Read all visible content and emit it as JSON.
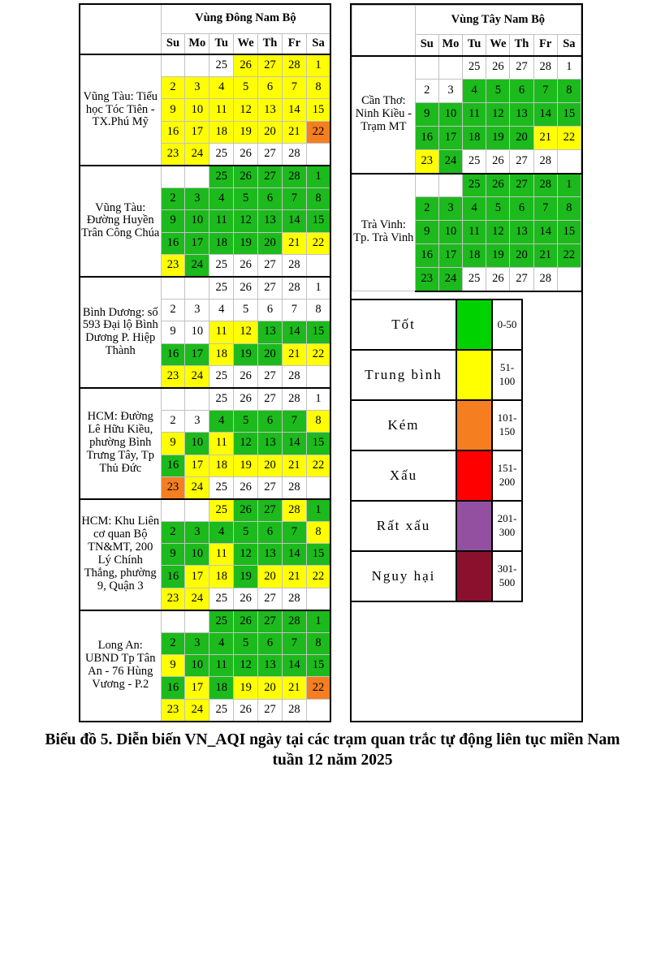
{
  "caption": {
    "line1": "Biểu đồ 5. Diễn biến VN_AQI ngày tại các trạm quan trắc tự động liên tục miền Nam",
    "line2": "tuần 12 năm 2025"
  },
  "day_headers": [
    "Su",
    "Mo",
    "Tu",
    "We",
    "Th",
    "Fr",
    "Sa"
  ],
  "palette": {
    "g": "#1cba1c",
    "y": "#ffff00",
    "o": "#f57e20",
    "w": "#ffffff",
    "n": "#ffffff"
  },
  "chart_data": {
    "type": "heatmap",
    "title": "Biểu đồ 5. Diễn biến VN_AQI ngày tại các trạm quan trắc tự động liên tục miền Nam tuần 12 năm 2025",
    "cell_code_meaning": {
      "g": "Tốt (0-50)",
      "y": "Trung bình (51-100)",
      "o": "Kém (101-150)",
      "w": "no color (no data)",
      "n": "blank cell"
    },
    "week_values": [
      [
        "",
        "",
        "25",
        "26",
        "27",
        "28",
        "1"
      ],
      [
        "2",
        "3",
        "4",
        "5",
        "6",
        "7",
        "8"
      ],
      [
        "9",
        "10",
        "11",
        "12",
        "13",
        "14",
        "15"
      ],
      [
        "16",
        "17",
        "18",
        "19",
        "20",
        "21",
        "22"
      ],
      [
        "23",
        "24",
        "25",
        "26",
        "27",
        "28",
        ""
      ]
    ],
    "groups": [
      {
        "title": "Vùng Đông Nam Bộ",
        "stations": [
          {
            "name": "Vũng Tàu: Tiểu học Tóc Tiên - TX.Phú Mỹ",
            "colors": [
              [
                "n",
                "n",
                "w",
                "y",
                "y",
                "y",
                "y"
              ],
              [
                "y",
                "y",
                "y",
                "y",
                "y",
                "y",
                "y"
              ],
              [
                "y",
                "y",
                "y",
                "y",
                "y",
                "y",
                "y"
              ],
              [
                "y",
                "y",
                "y",
                "y",
                "y",
                "y",
                "o"
              ],
              [
                "y",
                "y",
                "w",
                "w",
                "w",
                "w",
                "n"
              ]
            ]
          },
          {
            "name": "Vũng Tàu: Đường Huyền Trân Công Chúa",
            "colors": [
              [
                "n",
                "n",
                "g",
                "g",
                "g",
                "g",
                "g"
              ],
              [
                "g",
                "g",
                "g",
                "g",
                "g",
                "g",
                "g"
              ],
              [
                "g",
                "g",
                "g",
                "g",
                "g",
                "g",
                "g"
              ],
              [
                "g",
                "g",
                "g",
                "g",
                "g",
                "y",
                "y"
              ],
              [
                "y",
                "g",
                "w",
                "w",
                "w",
                "w",
                "n"
              ]
            ]
          },
          {
            "name": "Bình Dương: số 593 Đại lộ Bình Dương  P. Hiệp Thành",
            "colors": [
              [
                "n",
                "n",
                "w",
                "w",
                "w",
                "w",
                "w"
              ],
              [
                "w",
                "w",
                "w",
                "w",
                "w",
                "w",
                "w"
              ],
              [
                "w",
                "w",
                "y",
                "y",
                "g",
                "g",
                "g"
              ],
              [
                "g",
                "g",
                "y",
                "g",
                "g",
                "y",
                "y"
              ],
              [
                "y",
                "y",
                "w",
                "w",
                "w",
                "w",
                "n"
              ]
            ]
          },
          {
            "name": "HCM: Đường Lê Hữu Kiều, phường Bình Trưng Tây, Tp Thủ Đức",
            "colors": [
              [
                "n",
                "n",
                "w",
                "w",
                "w",
                "w",
                "w"
              ],
              [
                "w",
                "w",
                "g",
                "g",
                "g",
                "g",
                "y"
              ],
              [
                "y",
                "g",
                "y",
                "g",
                "g",
                "g",
                "g"
              ],
              [
                "g",
                "y",
                "y",
                "y",
                "y",
                "y",
                "y"
              ],
              [
                "o",
                "y",
                "w",
                "w",
                "w",
                "w",
                "n"
              ]
            ]
          },
          {
            "name": "HCM: Khu Liên cơ quan Bộ TN&MT, 200 Lý Chính Thắng, phường 9, Quận 3",
            "colors": [
              [
                "n",
                "n",
                "y",
                "g",
                "g",
                "y",
                "g"
              ],
              [
                "g",
                "g",
                "g",
                "g",
                "g",
                "g",
                "y"
              ],
              [
                "g",
                "g",
                "y",
                "g",
                "g",
                "g",
                "g"
              ],
              [
                "g",
                "y",
                "y",
                "g",
                "y",
                "y",
                "y"
              ],
              [
                "y",
                "y",
                "w",
                "w",
                "w",
                "w",
                "n"
              ]
            ]
          },
          {
            "name": "Long An: UBND Tp Tân An - 76 Hùng Vương - P.2",
            "colors": [
              [
                "n",
                "n",
                "g",
                "g",
                "g",
                "g",
                "g"
              ],
              [
                "g",
                "g",
                "g",
                "g",
                "g",
                "g",
                "g"
              ],
              [
                "y",
                "g",
                "g",
                "g",
                "g",
                "g",
                "g"
              ],
              [
                "g",
                "y",
                "g",
                "y",
                "y",
                "y",
                "o"
              ],
              [
                "y",
                "y",
                "w",
                "w",
                "w",
                "w",
                "n"
              ]
            ]
          }
        ]
      },
      {
        "title": "Vùng Tây Nam Bộ",
        "stations": [
          {
            "name": "Cần Thơ: Ninh Kiều - Trạm MT",
            "colors": [
              [
                "n",
                "n",
                "w",
                "w",
                "w",
                "w",
                "w"
              ],
              [
                "w",
                "w",
                "g",
                "g",
                "g",
                "g",
                "g"
              ],
              [
                "g",
                "g",
                "g",
                "g",
                "g",
                "g",
                "g"
              ],
              [
                "g",
                "g",
                "g",
                "g",
                "g",
                "y",
                "y"
              ],
              [
                "y",
                "g",
                "w",
                "w",
                "w",
                "w",
                "n"
              ]
            ]
          },
          {
            "name": "Trà Vinh: Tp. Trà Vinh",
            "colors": [
              [
                "n",
                "n",
                "g",
                "g",
                "g",
                "g",
                "g"
              ],
              [
                "g",
                "g",
                "g",
                "g",
                "g",
                "g",
                "g"
              ],
              [
                "g",
                "g",
                "g",
                "g",
                "g",
                "g",
                "g"
              ],
              [
                "g",
                "g",
                "g",
                "g",
                "g",
                "g",
                "g"
              ],
              [
                "g",
                "g",
                "w",
                "w",
                "w",
                "w",
                "n"
              ]
            ]
          }
        ]
      }
    ],
    "value_legend": [
      {
        "label": "Tốt",
        "range": "0-50",
        "color": "#00d200"
      },
      {
        "label": "Trung bình",
        "range": "51-100",
        "color": "#ffff00"
      },
      {
        "label": "Kém",
        "range": "101-150",
        "color": "#f57e20"
      },
      {
        "label": "Xấu",
        "range": "151-200",
        "color": "#fe0000"
      },
      {
        "label": "Rất xấu",
        "range": "201-300",
        "color": "#9350a0"
      },
      {
        "label": "Nguy hại",
        "range": "301-500",
        "color": "#8b102d"
      }
    ],
    "legend_position": "right-middle",
    "grid": "on"
  }
}
